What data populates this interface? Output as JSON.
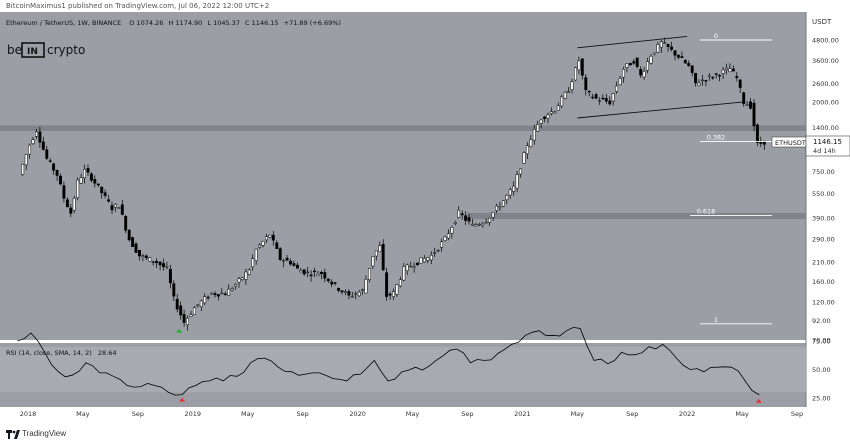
{
  "header": {
    "published_text": "BitcoinMaximus1 published on TradingView.com, Jul 06, 2022 12:00 UTC+2"
  },
  "legend": {
    "symbol": "Ethereum / TetherUS, 1W, BINANCE",
    "o_label": "O",
    "o_value": "1074.26",
    "h_label": "H",
    "h_value": "1174.90",
    "l_label": "L",
    "l_value": "1045.37",
    "c_label": "C",
    "c_value": "1146.15",
    "change": "+71.89 (+6.69%)"
  },
  "watermark": {
    "logo_text_left": "be",
    "logo_text_mid": "IN",
    "logo_text_right": "crypto"
  },
  "chart_data": {
    "type": "candlestick",
    "symbol": "ETHUSDT",
    "price_axis": {
      "unit": "USDT",
      "scale": "log",
      "ticks": [
        "4800.00",
        "3600.00",
        "2600.00",
        "2000.00",
        "1400.00",
        "1000.00",
        "750.00",
        "550.00",
        "390.00",
        "290.00",
        "210.00",
        "160.00",
        "120.00",
        "92.00",
        "70.00"
      ],
      "tick_values": [
        4800,
        3600,
        2600,
        2000,
        1400,
        1000,
        750,
        550,
        390,
        290,
        210,
        160,
        120,
        92,
        70
      ]
    },
    "time_axis": {
      "ticks": [
        "2018",
        "May",
        "Sep",
        "2019",
        "May",
        "Sep",
        "2020",
        "May",
        "Sep",
        "2021",
        "May",
        "Sep",
        "2022",
        "May",
        "Sep"
      ],
      "tick_dates": [
        "2018-01",
        "2018-05",
        "2018-09",
        "2019-01",
        "2019-05",
        "2019-09",
        "2020-01",
        "2020-05",
        "2020-09",
        "2021-01",
        "2021-05",
        "2021-09",
        "2022-01",
        "2022-05",
        "2022-09"
      ]
    },
    "last_price": {
      "label": "ETHUSDT",
      "value": "1146.15",
      "countdown": "4d 14h"
    },
    "fib_levels": [
      {
        "label": "0",
        "price": 4800
      },
      {
        "label": "0.382",
        "price": 1150
      },
      {
        "label": "0.618",
        "price": 405
      },
      {
        "label": "1",
        "price": 88
      }
    ],
    "horizontal_zones": [
      {
        "price_low": 1330,
        "price_high": 1440
      },
      {
        "price_low": 385,
        "price_high": 420
      }
    ],
    "channel": {
      "upper": [
        {
          "date": "2021-05",
          "price": 4300
        },
        {
          "date": "2022-01",
          "price": 5050
        }
      ],
      "lower": [
        {
          "date": "2021-05",
          "price": 1600
        },
        {
          "date": "2022-05",
          "price": 2000
        }
      ]
    },
    "weekly_closes": [
      [
        "2017-12",
        720
      ],
      [
        "2018-01",
        1100
      ],
      [
        "2018-01",
        1350
      ],
      [
        "2018-02",
        900
      ],
      [
        "2018-03",
        720
      ],
      [
        "2018-03",
        520
      ],
      [
        "2018-04",
        420
      ],
      [
        "2018-04",
        650
      ],
      [
        "2018-05",
        760
      ],
      [
        "2018-05",
        690
      ],
      [
        "2018-06",
        560
      ],
      [
        "2018-07",
        450
      ],
      [
        "2018-07",
        470
      ],
      [
        "2018-08",
        290
      ],
      [
        "2018-09",
        230
      ],
      [
        "2018-09",
        220
      ],
      [
        "2018-10",
        210
      ],
      [
        "2018-11",
        190
      ],
      [
        "2018-11",
        125
      ],
      [
        "2018-12",
        90
      ],
      [
        "2019-01",
        110
      ],
      [
        "2019-01",
        120
      ],
      [
        "2019-02",
        135
      ],
      [
        "2019-03",
        135
      ],
      [
        "2019-04",
        160
      ],
      [
        "2019-05",
        190
      ],
      [
        "2019-05",
        250
      ],
      [
        "2019-06",
        280
      ],
      [
        "2019-06",
        310
      ],
      [
        "2019-07",
        220
      ],
      [
        "2019-08",
        210
      ],
      [
        "2019-08",
        190
      ],
      [
        "2019-09",
        180
      ],
      [
        "2019-10",
        180
      ],
      [
        "2019-11",
        150
      ],
      [
        "2019-12",
        130
      ],
      [
        "2020-01",
        140
      ],
      [
        "2020-02",
        230
      ],
      [
        "2020-02",
        260
      ],
      [
        "2020-03",
        130
      ],
      [
        "2020-03",
        135
      ],
      [
        "2020-04",
        190
      ],
      [
        "2020-05",
        210
      ],
      [
        "2020-06",
        230
      ],
      [
        "2020-07",
        290
      ],
      [
        "2020-08",
        420
      ],
      [
        "2020-09",
        350
      ],
      [
        "2020-10",
        380
      ],
      [
        "2020-11",
        470
      ],
      [
        "2020-12",
        600
      ],
      [
        "2021-01",
        1100
      ],
      [
        "2021-02",
        1600
      ],
      [
        "2021-03",
        1800
      ],
      [
        "2021-04",
        2400
      ],
      [
        "2021-05",
        3600
      ],
      [
        "2021-05",
        2300
      ],
      [
        "2021-06",
        2100
      ],
      [
        "2021-07",
        2000
      ],
      [
        "2021-08",
        3200
      ],
      [
        "2021-09",
        3600
      ],
      [
        "2021-09",
        2900
      ],
      [
        "2021-10",
        3900
      ],
      [
        "2021-11",
        4600
      ],
      [
        "2021-11",
        4300
      ],
      [
        "2021-12",
        3800
      ],
      [
        "2022-01",
        3300
      ],
      [
        "2022-01",
        2600
      ],
      [
        "2022-02",
        2800
      ],
      [
        "2022-03",
        3000
      ],
      [
        "2022-04",
        3200
      ],
      [
        "2022-04",
        2800
      ],
      [
        "2022-05",
        2000
      ],
      [
        "2022-05",
        1900
      ],
      [
        "2022-06",
        1100
      ],
      [
        "2022-06",
        1146
      ]
    ],
    "low_marker": {
      "date": "2018-12",
      "price": 82
    },
    "rsi": {
      "title": "RSI (14, close, SMA, 14, 2)",
      "value": "28.64",
      "ticks": [
        "75.00",
        "50.00",
        "25.00"
      ],
      "tick_values": [
        75,
        50,
        25
      ],
      "band": [
        30,
        70
      ],
      "values": [
        [
          "2017-12",
          75
        ],
        [
          "2018-01",
          82
        ],
        [
          "2018-02",
          65
        ],
        [
          "2018-03",
          48
        ],
        [
          "2018-04",
          45
        ],
        [
          "2018-05",
          56
        ],
        [
          "2018-06",
          47
        ],
        [
          "2018-07",
          44
        ],
        [
          "2018-08",
          36
        ],
        [
          "2018-09",
          35
        ],
        [
          "2018-10",
          36
        ],
        [
          "2018-11",
          30
        ],
        [
          "2018-12",
          28
        ],
        [
          "2019-01",
          36
        ],
        [
          "2019-02",
          40
        ],
        [
          "2019-03",
          40
        ],
        [
          "2019-04",
          44
        ],
        [
          "2019-05",
          56
        ],
        [
          "2019-06",
          60
        ],
        [
          "2019-07",
          52
        ],
        [
          "2019-08",
          48
        ],
        [
          "2019-09",
          46
        ],
        [
          "2019-10",
          47
        ],
        [
          "2019-11",
          42
        ],
        [
          "2019-12",
          40
        ],
        [
          "2020-01",
          46
        ],
        [
          "2020-02",
          58
        ],
        [
          "2020-03",
          40
        ],
        [
          "2020-04",
          48
        ],
        [
          "2020-05",
          52
        ],
        [
          "2020-06",
          53
        ],
        [
          "2020-07",
          62
        ],
        [
          "2020-08",
          68
        ],
        [
          "2020-09",
          56
        ],
        [
          "2020-10",
          58
        ],
        [
          "2020-11",
          64
        ],
        [
          "2020-12",
          72
        ],
        [
          "2021-01",
          80
        ],
        [
          "2021-02",
          84
        ],
        [
          "2021-03",
          80
        ],
        [
          "2021-04",
          84
        ],
        [
          "2021-05",
          86
        ],
        [
          "2021-06",
          58
        ],
        [
          "2021-07",
          55
        ],
        [
          "2021-08",
          65
        ],
        [
          "2021-09",
          63
        ],
        [
          "2021-10",
          70
        ],
        [
          "2021-11",
          72
        ],
        [
          "2021-12",
          60
        ],
        [
          "2022-01",
          50
        ],
        [
          "2022-02",
          48
        ],
        [
          "2022-03",
          52
        ],
        [
          "2022-04",
          52
        ],
        [
          "2022-05",
          40
        ],
        [
          "2022-06",
          28
        ],
        [
          "2022-06",
          28.6
        ]
      ],
      "markers": [
        {
          "date": "2018-12",
          "value": 28
        },
        {
          "date": "2022-06",
          "value": 27
        }
      ]
    }
  },
  "footer": {
    "brand": "TradingView"
  },
  "colors": {
    "panel": "#9b9ea5",
    "band": "#a7aab0",
    "candle": "#000000",
    "candle_up": "#ffffff",
    "marker_red": "#e8313d",
    "marker_green": "#27b12c"
  }
}
